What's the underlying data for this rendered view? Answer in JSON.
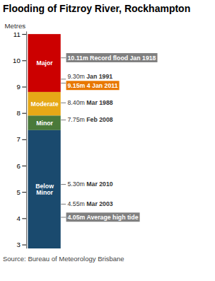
{
  "chart_data": {
    "type": "bar",
    "title": "Flooding of Fitzroy River, Rockhampton",
    "ylabel": "Metres",
    "caption": "Source: Bureau of Meteorology Brisbane",
    "ylim": [
      2.85,
      11.1
    ],
    "yticks": [
      3,
      4,
      5,
      6,
      7,
      8,
      9,
      10,
      11
    ],
    "tick_labels": "y",
    "segments": [
      {
        "name": "Major",
        "bottom": 8.8,
        "top": 11.0,
        "color": "#cc0000"
      },
      {
        "name": "Moderate",
        "bottom": 7.9,
        "top": 8.8,
        "color": "#e6a817"
      },
      {
        "name": "Minor",
        "bottom": 7.35,
        "top": 7.9,
        "color": "#4a7a3a"
      },
      {
        "name": "Below\nMinor",
        "bottom": 2.85,
        "top": 7.35,
        "color": "#1a4a6e"
      }
    ],
    "annotations": [
      {
        "value": 10.11,
        "text": "10.11m ",
        "bold": "Record flood Jan 1918",
        "highlighted": true,
        "color": "#808080"
      },
      {
        "value": 9.3,
        "text": "9.30m ",
        "bold": "Jan 1991",
        "highlighted": false
      },
      {
        "value": 9.15,
        "text": "9.15m ",
        "bold": "4 Jan 2011",
        "highlighted": true,
        "color": "#e87800"
      },
      {
        "value": 8.4,
        "text": "8.40m ",
        "bold": "Mar 1988",
        "highlighted": false
      },
      {
        "value": 7.75,
        "text": "7.75m ",
        "bold": "Feb 2008",
        "highlighted": false
      },
      {
        "value": 5.3,
        "text": "5.30m ",
        "bold": "Mar 2010",
        "highlighted": false
      },
      {
        "value": 4.55,
        "text": "4.55m ",
        "bold": "Mar 2003",
        "highlighted": false
      },
      {
        "value": 4.05,
        "text": "4.05m ",
        "bold": "Average high tide",
        "highlighted": true,
        "color": "#808080"
      }
    ]
  }
}
